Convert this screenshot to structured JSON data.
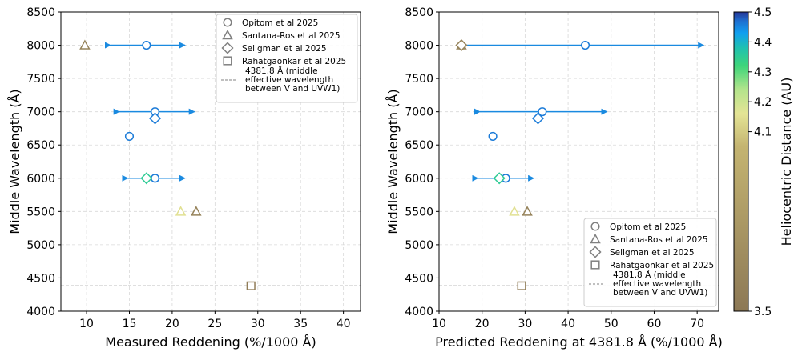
{
  "chart_data": [
    {
      "type": "scatter",
      "xlabel": "Measured Reddening (%/1000 Å)",
      "ylabel": "Middle Wavelength (Å)",
      "xlim": [
        7,
        42
      ],
      "ylim": [
        4000,
        8500
      ],
      "xticks": [
        10,
        15,
        20,
        25,
        30,
        35,
        40
      ],
      "yticks": [
        4000,
        4500,
        5000,
        5500,
        6000,
        6500,
        7000,
        7500,
        8000,
        8500
      ],
      "grid": true,
      "legend_position": "top-right",
      "reference_line": {
        "y": 4381.8,
        "label": "4381.8 Å (middle\neffective wavelength\nbetween V and UVW1)"
      },
      "points": [
        {
          "series": "Opitom et al 2025",
          "x": 17.0,
          "y": 8000,
          "rh": 4.46,
          "xerr": [
            12.8,
            21.5
          ]
        },
        {
          "series": "Opitom et al 2025",
          "x": 18.0,
          "y": 7000,
          "rh": 4.46,
          "xerr": [
            13.8,
            22.6
          ]
        },
        {
          "series": "Opitom et al 2025",
          "x": 15.0,
          "y": 6630,
          "rh": 4.46,
          "xerr": null
        },
        {
          "series": "Opitom et al 2025",
          "x": 18.0,
          "y": 6000,
          "rh": 4.46,
          "xerr": [
            14.8,
            21.5
          ]
        },
        {
          "series": "Santana-Ros et al 2025",
          "x": 9.8,
          "y": 8000,
          "rh": 3.6,
          "xerr": null
        },
        {
          "series": "Santana-Ros et al 2025",
          "x": 21.0,
          "y": 5500,
          "rh": 4.15,
          "xerr": null
        },
        {
          "series": "Santana-Ros et al 2025",
          "x": 22.8,
          "y": 5500,
          "rh": 3.6,
          "xerr": null
        },
        {
          "series": "Seligman et al 2025",
          "x": 18.0,
          "y": 6900,
          "rh": 4.46,
          "xerr": null
        },
        {
          "series": "Seligman et al 2025",
          "x": 17.0,
          "y": 6000,
          "rh": 4.35,
          "xerr": null
        },
        {
          "series": "Rahatgaonkar et al 2025",
          "x": 29.2,
          "y": 4381.8,
          "rh": 3.55,
          "xerr": null
        }
      ]
    },
    {
      "type": "scatter",
      "xlabel": "Predicted Reddening at 4381.8 Å (%/1000 Å)",
      "ylabel": "Middle Wavelength (Å)",
      "xlim": [
        10,
        75
      ],
      "ylim": [
        4000,
        8500
      ],
      "xticks": [
        10,
        20,
        30,
        40,
        50,
        60,
        70
      ],
      "yticks": [
        4000,
        4500,
        5000,
        5500,
        6000,
        6500,
        7000,
        7500,
        8000,
        8500
      ],
      "grid": true,
      "legend_position": "bottom-right",
      "reference_line": {
        "y": 4381.8,
        "label": "4381.8 Å (middle\neffective wavelength\nbetween V and UVW1)"
      },
      "points": [
        {
          "series": "Opitom et al 2025",
          "x": 44.0,
          "y": 8000,
          "rh": 4.46,
          "xerr": [
            16.0,
            71.5
          ]
        },
        {
          "series": "Opitom et al 2025",
          "x": 34.0,
          "y": 7000,
          "rh": 4.46,
          "xerr": [
            19.5,
            49.0
          ]
        },
        {
          "series": "Opitom et al 2025",
          "x": 22.5,
          "y": 6630,
          "rh": 4.46,
          "xerr": null
        },
        {
          "series": "Opitom et al 2025",
          "x": 25.5,
          "y": 6000,
          "rh": 4.46,
          "xerr": [
            19.0,
            32.0
          ]
        },
        {
          "series": "Santana-Ros et al 2025",
          "x": 15.2,
          "y": 8000,
          "rh": 3.6,
          "xerr": null
        },
        {
          "series": "Santana-Ros et al 2025",
          "x": 27.5,
          "y": 5500,
          "rh": 4.15,
          "xerr": null
        },
        {
          "series": "Santana-Ros et al 2025",
          "x": 30.5,
          "y": 5500,
          "rh": 3.6,
          "xerr": null
        },
        {
          "series": "Seligman et al 2025",
          "x": 15.2,
          "y": 8000,
          "rh": 3.6,
          "xerr": null
        },
        {
          "series": "Seligman et al 2025",
          "x": 33.0,
          "y": 6900,
          "rh": 4.46,
          "xerr": null
        },
        {
          "series": "Seligman et al 2025",
          "x": 24.0,
          "y": 6000,
          "rh": 4.35,
          "xerr": null
        },
        {
          "series": "Rahatgaonkar et al 2025",
          "x": 29.2,
          "y": 4381.8,
          "rh": 3.55,
          "xerr": null
        }
      ]
    }
  ],
  "legend": [
    {
      "label": "Opitom et al 2025",
      "marker": "circle"
    },
    {
      "label": "Santana-Ros et al 2025",
      "marker": "triangle"
    },
    {
      "label": "Seligman et al 2025",
      "marker": "diamond"
    },
    {
      "label": "Rahatgaonkar et al 2025",
      "marker": "square"
    }
  ],
  "colorbar": {
    "label": "Heliocentric Distance (AU)",
    "ticks": [
      3.5,
      4.1,
      4.2,
      4.3,
      4.4,
      4.5
    ],
    "range": [
      3.5,
      4.5
    ],
    "colors": [
      "#8c7856",
      "#c4b471",
      "#e4e495",
      "#b4e48c",
      "#3ed57a",
      "#1fc1b0",
      "#119ff0",
      "#1e6fd0",
      "#253494"
    ]
  }
}
